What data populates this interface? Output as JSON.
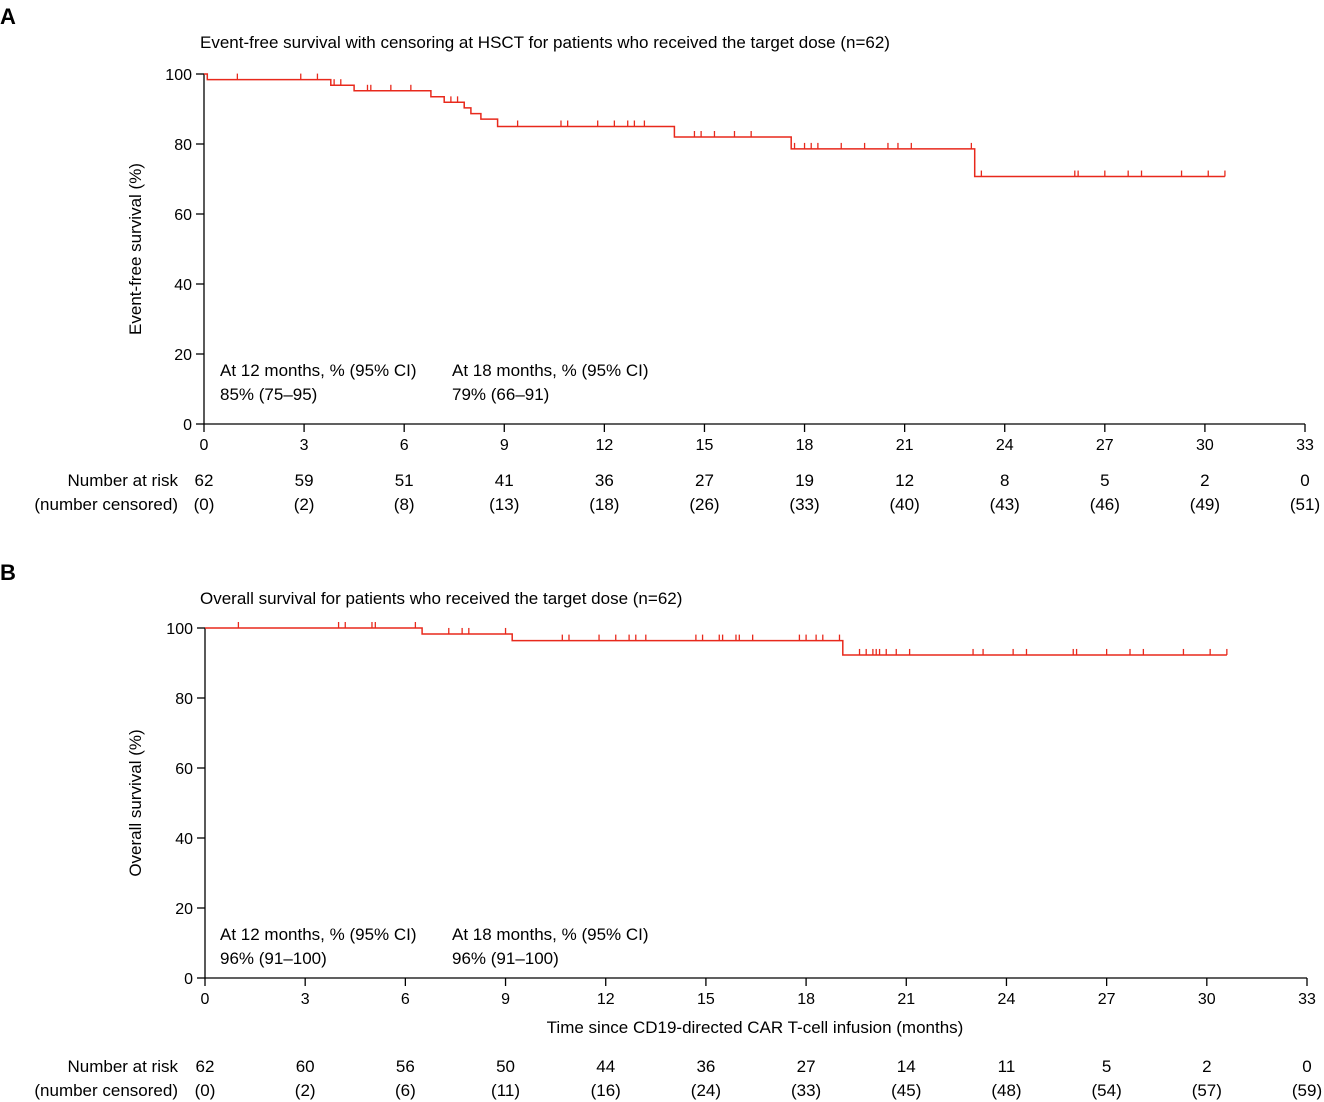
{
  "colors": {
    "curve": "#e8291c",
    "axis": "#000000"
  },
  "shared": {
    "risk_label_line1": "Number at risk",
    "risk_label_line2": "(number censored)"
  },
  "chart_data": [
    {
      "panel": "A",
      "type": "line",
      "step": true,
      "title": "Event-free survival with censoring at HSCT for patients who received the target dose (n=62)",
      "xlabel": "",
      "ylabel": "Event-free survival (%)",
      "xlim": [
        0,
        33
      ],
      "ylim": [
        0,
        100
      ],
      "xticks": [
        0,
        3,
        6,
        9,
        12,
        15,
        18,
        21,
        24,
        27,
        30,
        33
      ],
      "yticks": [
        0,
        20,
        40,
        60,
        80,
        100
      ],
      "grid": false,
      "annotations": [
        {
          "line1": "At 12 months, % (95% CI)",
          "line2": "85% (75–95)"
        },
        {
          "line1": "At 18 months, % (95% CI)",
          "line2": "79% (66–91)"
        }
      ],
      "series": [
        {
          "steps": [
            [
              0,
              100
            ],
            [
              0.1,
              98.4
            ],
            [
              3.8,
              96.8
            ],
            [
              4.5,
              95.2
            ],
            [
              6.8,
              93.5
            ],
            [
              7.2,
              91.9
            ],
            [
              7.8,
              90.3
            ],
            [
              8.0,
              88.7
            ],
            [
              8.3,
              87.1
            ],
            [
              8.8,
              85.0
            ],
            [
              14.1,
              82.0
            ],
            [
              17.6,
              78.6
            ],
            [
              23.1,
              70.7
            ],
            [
              30.6,
              70.7
            ]
          ],
          "censored": [
            1.0,
            2.9,
            3.4,
            3.9,
            4.1,
            4.9,
            5.0,
            5.6,
            6.2,
            7.4,
            7.6,
            7.8,
            9.4,
            10.7,
            10.9,
            11.8,
            12.3,
            12.7,
            12.9,
            13.2,
            14.7,
            14.9,
            15.3,
            15.9,
            16.4,
            17.7,
            18.0,
            18.2,
            18.4,
            19.1,
            19.8,
            20.5,
            20.8,
            21.2,
            23.0,
            23.3,
            26.1,
            26.2,
            27.0,
            27.7,
            28.1,
            29.3,
            30.1,
            30.6
          ]
        }
      ],
      "risk_table": {
        "at_risk": [
          "62",
          "59",
          "51",
          "41",
          "36",
          "27",
          "19",
          "12",
          "8",
          "5",
          "2",
          "0"
        ],
        "censored": [
          "(0)",
          "(2)",
          "(8)",
          "(13)",
          "(18)",
          "(26)",
          "(33)",
          "(40)",
          "(43)",
          "(46)",
          "(49)",
          "(51)"
        ]
      }
    },
    {
      "panel": "B",
      "type": "line",
      "step": true,
      "title": "Overall survival for patients who received the target dose (n=62)",
      "xlabel": "Time since CD19-directed CAR T-cell infusion (months)",
      "ylabel": "Overall survival (%)",
      "xlim": [
        0,
        33
      ],
      "ylim": [
        0,
        100
      ],
      "xticks": [
        0,
        3,
        6,
        9,
        12,
        15,
        18,
        21,
        24,
        27,
        30,
        33
      ],
      "yticks": [
        0,
        20,
        40,
        60,
        80,
        100
      ],
      "grid": false,
      "annotations": [
        {
          "line1": "At 12 months, % (95% CI)",
          "line2": "96% (91–100)"
        },
        {
          "line1": "At 18 months, % (95% CI)",
          "line2": "96% (91–100)"
        }
      ],
      "series": [
        {
          "steps": [
            [
              0,
              100
            ],
            [
              6.5,
              98.3
            ],
            [
              9.2,
              96.4
            ],
            [
              19.1,
              92.3
            ],
            [
              30.6,
              92.3
            ]
          ],
          "censored": [
            1.0,
            4.0,
            4.2,
            5.0,
            5.1,
            6.3,
            7.3,
            7.7,
            7.9,
            9.0,
            10.7,
            10.9,
            11.8,
            12.3,
            12.7,
            12.9,
            13.2,
            14.7,
            14.9,
            15.4,
            15.5,
            15.9,
            16.0,
            16.4,
            17.8,
            18.0,
            18.3,
            18.5,
            19.0,
            19.6,
            19.8,
            20.0,
            20.1,
            20.2,
            20.4,
            20.7,
            21.1,
            23.0,
            23.3,
            24.2,
            24.6,
            26.0,
            26.1,
            27.0,
            27.7,
            28.1,
            29.3,
            30.1,
            30.6
          ]
        }
      ],
      "risk_table": {
        "at_risk": [
          "62",
          "60",
          "56",
          "50",
          "44",
          "36",
          "27",
          "14",
          "11",
          "5",
          "2",
          "0"
        ],
        "censored": [
          "(0)",
          "(2)",
          "(6)",
          "(11)",
          "(16)",
          "(24)",
          "(33)",
          "(45)",
          "(48)",
          "(54)",
          "(57)",
          "(59)"
        ]
      }
    }
  ]
}
